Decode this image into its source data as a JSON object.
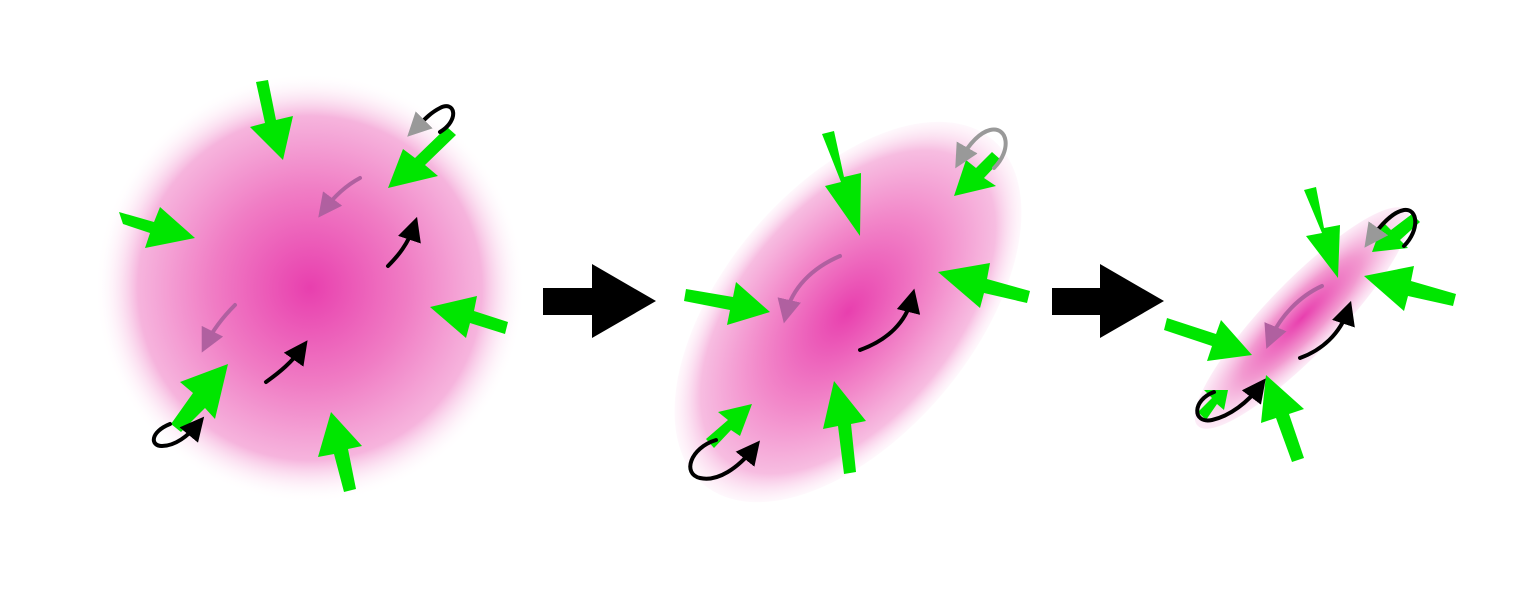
{
  "diagram": {
    "stages": [
      {
        "shape": "circular-cloud",
        "label": ""
      },
      {
        "shape": "elongated-cloud",
        "label": ""
      },
      {
        "shape": "thin-filament",
        "label": ""
      }
    ],
    "transitions": [
      {
        "from": 1,
        "to": 2,
        "icon": "right-arrow-icon"
      },
      {
        "from": 2,
        "to": 3,
        "icon": "right-arrow-icon"
      }
    ],
    "arrow_meaning": {
      "green": "inward-compression",
      "black": "rotation",
      "gray": "rotation-far-side"
    }
  },
  "colors": {
    "cloud_core": "#e83fae",
    "cloud_edge": "#fbe0f2",
    "compression_arrow": "#00e600",
    "stage_arrow": "#000000",
    "rotation_front": "#000000",
    "rotation_back": "#999999",
    "rotation_inner": "#b060a0",
    "background": "#ffffff"
  }
}
